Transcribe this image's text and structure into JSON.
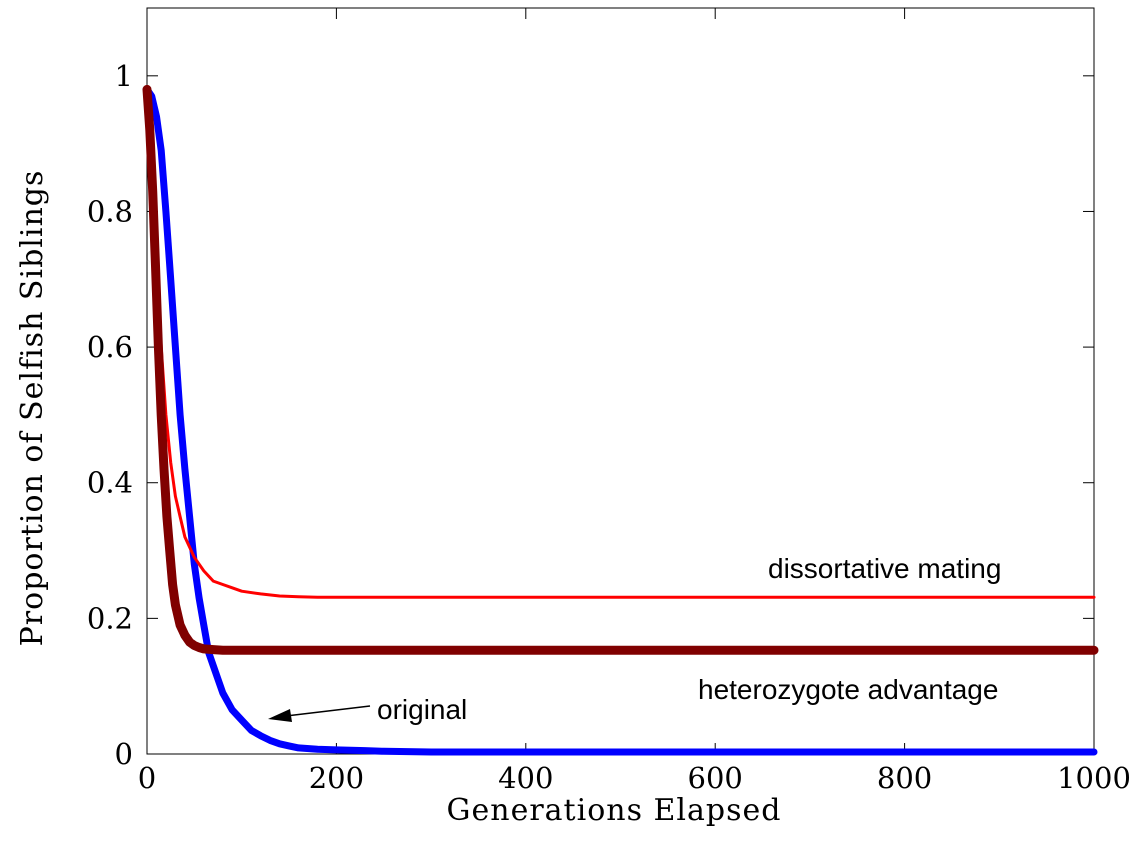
{
  "chart_data": {
    "type": "line",
    "xlabel": "Generations Elapsed",
    "ylabel": "Proportion of Selfish Siblings",
    "xlim": [
      0,
      1000
    ],
    "ylim": [
      0,
      1.1
    ],
    "xticks": [
      0,
      200,
      400,
      600,
      800,
      1000
    ],
    "xtick_labels": [
      "0",
      "200",
      "400",
      "600",
      "800",
      "1000"
    ],
    "yticks": [
      0,
      0.2,
      0.4,
      0.6,
      0.8,
      1
    ],
    "ytick_labels": [
      "0",
      "0.2",
      "0.4",
      "0.6",
      "0.8",
      "1"
    ],
    "grid": false,
    "series": [
      {
        "key": "original",
        "color": "#0000ff",
        "x": [
          0,
          5,
          10,
          15,
          20,
          25,
          30,
          35,
          40,
          45,
          50,
          55,
          60,
          65,
          70,
          80,
          90,
          100,
          110,
          120,
          130,
          140,
          150,
          160,
          180,
          200,
          230,
          250,
          300,
          400,
          600,
          800,
          1000
        ],
        "y": [
          0.98,
          0.97,
          0.94,
          0.89,
          0.8,
          0.7,
          0.6,
          0.5,
          0.42,
          0.35,
          0.28,
          0.23,
          0.19,
          0.15,
          0.13,
          0.09,
          0.065,
          0.05,
          0.035,
          0.027,
          0.02,
          0.015,
          0.012,
          0.009,
          0.007,
          0.006,
          0.005,
          0.004,
          0.003,
          0.003,
          0.003,
          0.003,
          0.003
        ]
      },
      {
        "key": "dissortative",
        "color": "#ff0000",
        "x": [
          0,
          3,
          6,
          9,
          12,
          15,
          20,
          25,
          30,
          35,
          40,
          50,
          60,
          70,
          80,
          90,
          100,
          120,
          140,
          160,
          180,
          200,
          300,
          400,
          600,
          800,
          1000
        ],
        "y": [
          0.98,
          0.93,
          0.85,
          0.77,
          0.68,
          0.6,
          0.5,
          0.43,
          0.38,
          0.35,
          0.32,
          0.29,
          0.27,
          0.255,
          0.25,
          0.245,
          0.24,
          0.236,
          0.233,
          0.232,
          0.231,
          0.231,
          0.231,
          0.231,
          0.231,
          0.231,
          0.231
        ]
      },
      {
        "key": "heterozygote",
        "color": "#800000",
        "x": [
          0,
          3,
          6,
          9,
          12,
          15,
          18,
          21,
          24,
          27,
          30,
          35,
          40,
          45,
          50,
          55,
          60,
          70,
          80,
          100,
          150,
          200,
          400,
          600,
          800,
          1000
        ],
        "y": [
          0.98,
          0.92,
          0.83,
          0.72,
          0.6,
          0.5,
          0.42,
          0.35,
          0.3,
          0.25,
          0.22,
          0.19,
          0.175,
          0.165,
          0.16,
          0.157,
          0.155,
          0.154,
          0.153,
          0.153,
          0.153,
          0.153,
          0.153,
          0.153,
          0.153,
          0.153
        ]
      }
    ],
    "annotations": {
      "dissortative": "dissortative mating",
      "heterozygote": "heterozygote advantage",
      "original": "original"
    }
  }
}
